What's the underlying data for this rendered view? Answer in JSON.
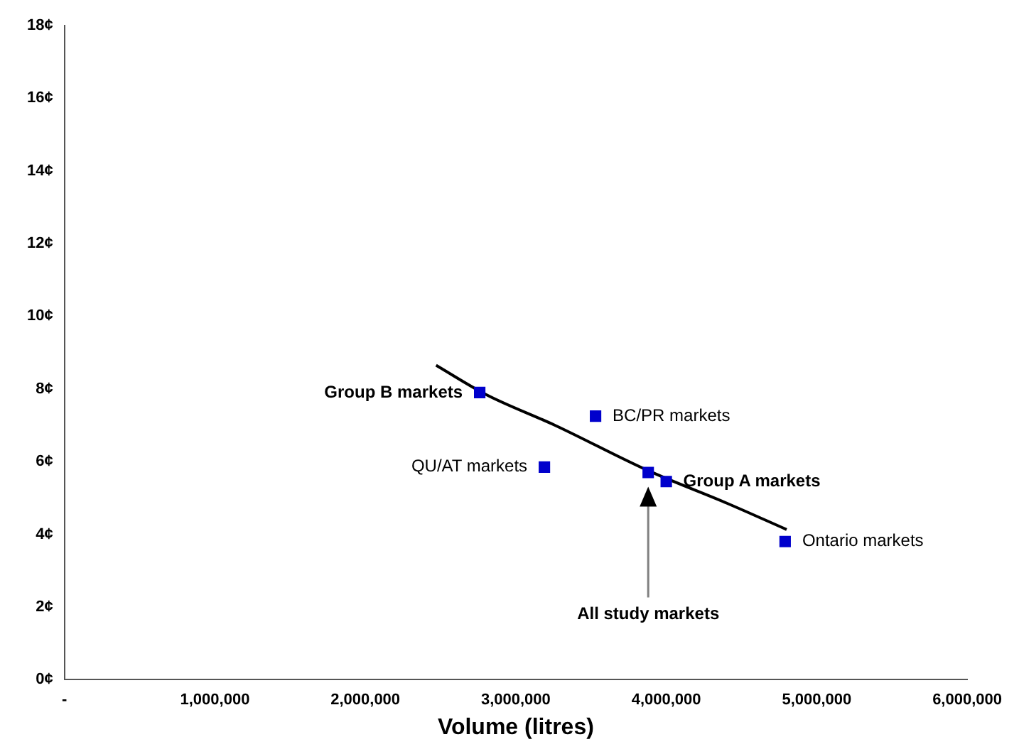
{
  "chart_data": {
    "type": "scatter",
    "xlabel": "Volume (litres)",
    "xlim": [
      0,
      6000000
    ],
    "xticks": [
      {
        "value": 0,
        "label": "-"
      },
      {
        "value": 1000000,
        "label": "1,000,000"
      },
      {
        "value": 2000000,
        "label": "2,000,000"
      },
      {
        "value": 3000000,
        "label": "3,000,000"
      },
      {
        "value": 4000000,
        "label": "4,000,000"
      },
      {
        "value": 5000000,
        "label": "5,000,000"
      },
      {
        "value": 6000000,
        "label": "6,000,000"
      }
    ],
    "ylim": [
      0,
      18
    ],
    "yticks": [
      {
        "value": 0,
        "label": "0¢"
      },
      {
        "value": 2,
        "label": "2¢"
      },
      {
        "value": 4,
        "label": "4¢"
      },
      {
        "value": 6,
        "label": "6¢"
      },
      {
        "value": 8,
        "label": "8¢"
      },
      {
        "value": 10,
        "label": "10¢"
      },
      {
        "value": 12,
        "label": "12¢"
      },
      {
        "value": 14,
        "label": "14¢"
      },
      {
        "value": 16,
        "label": "16¢"
      },
      {
        "value": 18,
        "label": "18¢"
      }
    ],
    "grid": false,
    "legend": false,
    "marker": "square",
    "series": [
      {
        "color": "#0000cc",
        "x": [
          2760000,
          3530000,
          3190000,
          3880000,
          4000000,
          4790000
        ],
        "values": [
          7.9,
          7.25,
          5.85,
          5.7,
          5.45,
          3.8
        ]
      },
      {
        "type": "line",
        "color": "#000000",
        "marker": "none",
        "line_style": "solid",
        "x": [
          2470000,
          2800000,
          3260000,
          3880000,
          4400000,
          4800000
        ],
        "values": [
          8.65,
          7.85,
          7.0,
          5.75,
          4.86,
          4.13
        ]
      }
    ],
    "annotations": [
      {
        "text": "Group B markets",
        "x": 2760000,
        "y": 7.9
      },
      {
        "text": "BC/PR markets",
        "x": 3530000,
        "y": 7.25
      },
      {
        "text": "QU/AT markets",
        "x": 3190000,
        "y": 5.85
      },
      "All study markets",
      {
        "text": "Group A markets",
        "x": 4000000,
        "y": 5.45
      },
      {
        "text": "Ontario markets",
        "x": 4790000,
        "y": 3.8
      }
    ]
  }
}
